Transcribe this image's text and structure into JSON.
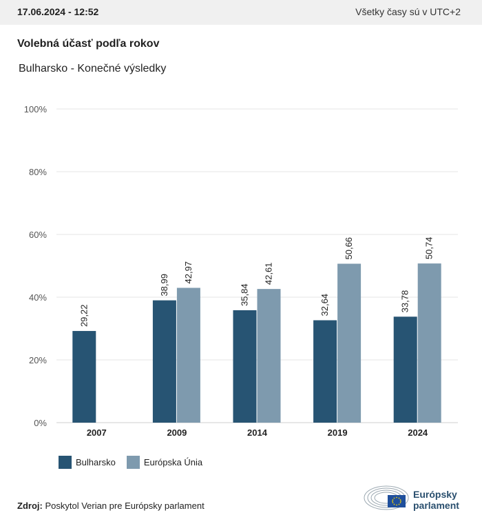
{
  "header": {
    "datetime": "17.06.2024 - 12:52",
    "timezone_note": "Všetky časy sú v UTC+2"
  },
  "title": "Volebná účasť podľa rokov",
  "subtitle": "Bulharsko - Konečné výsledky",
  "colors": {
    "bulharsko": "#275473",
    "eu": "#7e9aae",
    "grid": "#e6e6e6",
    "axis": "#cfcfcf"
  },
  "chart_data": {
    "type": "bar",
    "categories": [
      "2007",
      "2009",
      "2014",
      "2019",
      "2024"
    ],
    "series": [
      {
        "name": "Bulharsko",
        "values": [
          29.22,
          38.99,
          35.84,
          32.64,
          33.78
        ],
        "labels": [
          "29,22",
          "38,99",
          "35,84",
          "32,64",
          "33,78"
        ]
      },
      {
        "name": "Európska Únia",
        "values": [
          null,
          42.97,
          42.61,
          50.66,
          50.74
        ],
        "labels": [
          "",
          "42,97",
          "42,61",
          "50,66",
          "50,74"
        ]
      }
    ],
    "ylim": [
      0,
      100
    ],
    "yticks": [
      0,
      20,
      40,
      60,
      80,
      100
    ],
    "ytick_labels": [
      "0%",
      "20%",
      "40%",
      "60%",
      "80%",
      "100%"
    ],
    "grid": true,
    "legend": "bottom-left"
  },
  "legend": {
    "items": [
      "Bulharsko",
      "Európska Únia"
    ]
  },
  "source": {
    "label": "Zdroj:",
    "text": "Poskytol Verian pre Európsky parlament"
  },
  "logo": {
    "line1": "Európsky",
    "line2": "parlament"
  }
}
